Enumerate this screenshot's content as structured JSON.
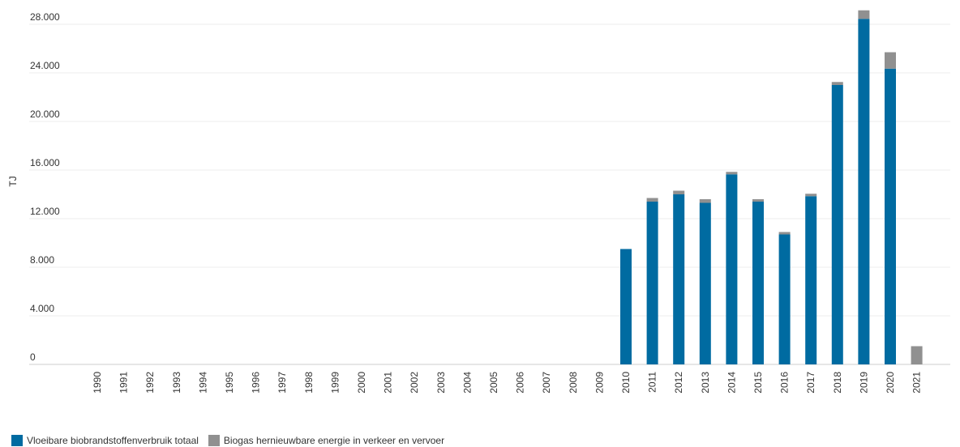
{
  "chart_data": {
    "type": "bar",
    "stacked": true,
    "ylabel": "TJ",
    "xlabel": "",
    "ylim": [
      0,
      28000
    ],
    "yticks": [
      0,
      4000,
      8000,
      12000,
      16000,
      20000,
      24000,
      28000
    ],
    "ytick_labels": [
      "0",
      "4.000",
      "8.000",
      "12.000",
      "16.000",
      "20.000",
      "24.000",
      "28.000"
    ],
    "grid": true,
    "legend_position": "bottom-left",
    "categories": [
      "1990",
      "1991",
      "1992",
      "1993",
      "1994",
      "1995",
      "1996",
      "1997",
      "1998",
      "1999",
      "2000",
      "2001",
      "2002",
      "2003",
      "2004",
      "2005",
      "2006",
      "2007",
      "2008",
      "2009",
      "2010",
      "2011",
      "2012",
      "2013",
      "2014",
      "2015",
      "2016",
      "2017",
      "2018",
      "2019",
      "2020",
      "2021"
    ],
    "series": [
      {
        "name": "Vloeibare biobrandstoffenverbruik totaal",
        "color": "#006ba1",
        "values": [
          null,
          null,
          null,
          null,
          null,
          null,
          null,
          null,
          null,
          null,
          null,
          null,
          null,
          null,
          null,
          null,
          null,
          null,
          null,
          null,
          9500,
          13400,
          14000,
          13300,
          15650,
          13400,
          10700,
          13850,
          23000,
          28450,
          24350,
          null
        ]
      },
      {
        "name": "Biogas hernieuwbare energie in verkeer en vervoer",
        "color": "#909090",
        "values": [
          null,
          null,
          null,
          null,
          null,
          null,
          null,
          null,
          null,
          null,
          null,
          null,
          null,
          null,
          null,
          null,
          null,
          null,
          null,
          null,
          null,
          300,
          300,
          300,
          200,
          200,
          200,
          200,
          250,
          700,
          1350,
          1500
        ]
      }
    ]
  }
}
